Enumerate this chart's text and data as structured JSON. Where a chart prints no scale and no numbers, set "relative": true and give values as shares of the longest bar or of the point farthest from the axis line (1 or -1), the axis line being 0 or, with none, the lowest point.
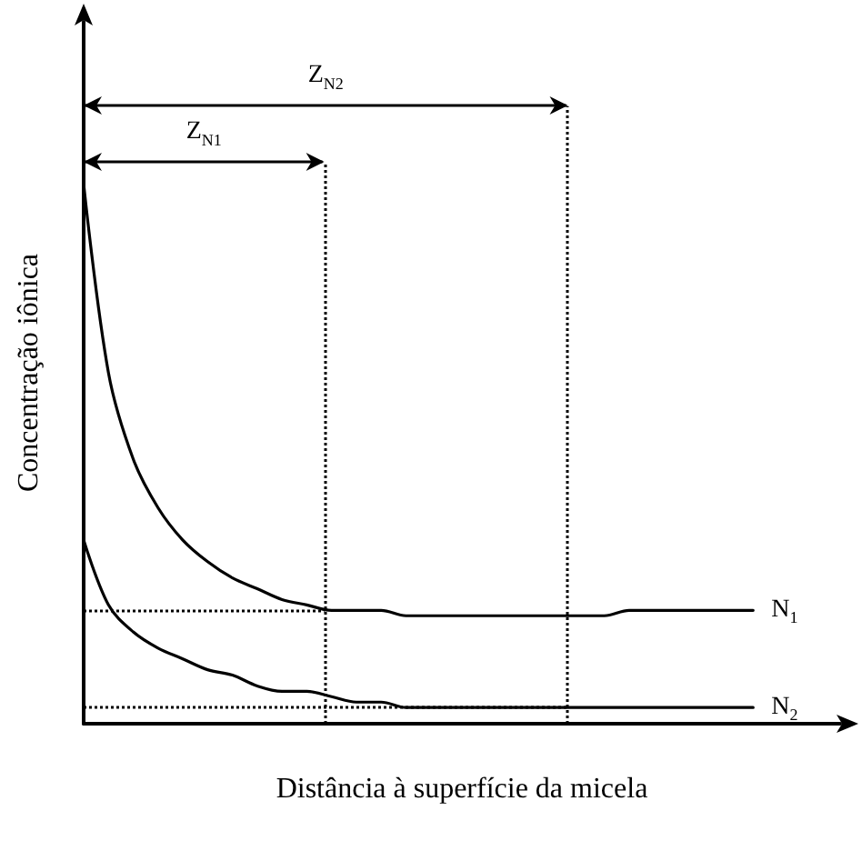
{
  "chart_data": {
    "type": "line",
    "relative": true,
    "xlabel": "Distância à superfície da micela",
    "ylabel": "Concentração iônica",
    "categories": [
      null,
      null,
      null,
      null,
      null,
      null,
      null,
      null,
      null,
      null,
      null,
      null,
      null,
      null,
      null,
      null,
      null,
      null,
      null,
      null,
      null,
      null,
      null,
      null,
      null,
      null,
      null,
      null
    ],
    "series": [
      {
        "name": "N$_{1}$",
        "color": "#000000",
        "values": [
          1.0,
          0.65,
          0.49,
          0.4,
          0.34,
          0.3,
          0.27,
          0.25,
          0.23,
          0.22,
          0.21,
          0.21,
          0.21,
          0.2,
          0.2,
          0.2,
          0.2,
          0.2,
          0.2,
          0.2,
          0.2,
          0.2,
          0.21,
          0.21,
          0.21,
          0.21,
          0.21,
          0.21
        ]
      },
      {
        "name": "N$_{2}$",
        "color": "#000000",
        "values": [
          0.34,
          0.22,
          0.17,
          0.14,
          0.12,
          0.1,
          0.09,
          0.07,
          0.06,
          0.06,
          0.05,
          0.04,
          0.04,
          0.03,
          0.03,
          0.03,
          0.03,
          0.03,
          0.03,
          0.03,
          0.03,
          0.03,
          0.03,
          0.03,
          0.03,
          0.03,
          0.03,
          0.03
        ]
      }
    ],
    "ref_lines": [
      {
        "axis": "y",
        "value": 0.21,
        "color": "#000000",
        "line_style": "dotted"
      },
      {
        "axis": "y",
        "value": 0.03,
        "color": "#000000",
        "line_style": "dotted"
      }
    ],
    "annotations": [
      "Z$_{N1}$",
      "Z$_{N2}$"
    ],
    "grid": false,
    "marker": "none",
    "line_style": "solid",
    "tick_labels": false
  }
}
